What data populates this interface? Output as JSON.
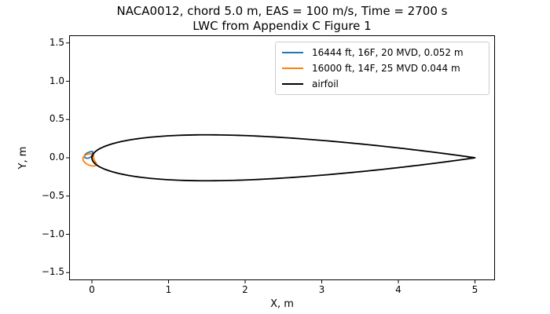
{
  "figure": {
    "title": "NACA0012, chord 5.0 m, EAS = 100 m/s, Time = 2700 s",
    "subtitle": "LWC from Appendix C Figure 1"
  },
  "chart_data": {
    "type": "line",
    "title": "NACA0012, chord 5.0 m, EAS = 100 m/s, Time = 2700 s",
    "subtitle": "LWC from Appendix C Figure 1",
    "aspect": "equal",
    "grid": false,
    "legend_position": "upper right",
    "x_axis": {
      "label": "X, m",
      "lim": [
        -0.3,
        5.26
      ],
      "ticks": [
        {
          "value": 0,
          "text": "0"
        },
        {
          "value": 1,
          "text": "1"
        },
        {
          "value": 2,
          "text": "2"
        },
        {
          "value": 3,
          "text": "3"
        },
        {
          "value": 4,
          "text": "4"
        },
        {
          "value": 5,
          "text": "5"
        }
      ]
    },
    "y_axis": {
      "label": "Y, m",
      "lim": [
        -1.6,
        1.6
      ],
      "ticks": [
        {
          "value": 1.5,
          "text": "1.5"
        },
        {
          "value": 1.0,
          "text": "1.0"
        },
        {
          "value": 0.5,
          "text": "0.5"
        },
        {
          "value": 0.0,
          "text": "0.0"
        },
        {
          "value": -0.5,
          "text": "−0.5"
        },
        {
          "value": -1.0,
          "text": "−1.0"
        },
        {
          "value": -1.5,
          "text": "−1.5"
        }
      ]
    },
    "series": [
      {
        "name": "16444 ft, 16F, 20 MVD, 0.052 m",
        "color": "#1f77b4",
        "kind": "ice_shape_outline",
        "closed": true,
        "points": [
          [
            0.008,
            0.083
          ],
          [
            -0.025,
            0.078
          ],
          [
            -0.06,
            0.065
          ],
          [
            -0.088,
            0.044
          ],
          [
            -0.099,
            0.02
          ],
          [
            -0.093,
            0.003
          ],
          [
            -0.072,
            -0.006
          ],
          [
            -0.045,
            -0.004
          ],
          [
            -0.018,
            0.008
          ],
          [
            0.002,
            0.03
          ],
          [
            0.01,
            0.056
          ]
        ]
      },
      {
        "name": "16000 ft, 14F, 25 MVD 0.044 m",
        "color": "#ff7f0e",
        "kind": "ice_shape_outline",
        "closed": true,
        "points": [
          [
            0.022,
            0.047
          ],
          [
            -0.02,
            0.052
          ],
          [
            -0.065,
            0.045
          ],
          [
            -0.1,
            0.025
          ],
          [
            -0.118,
            -0.004
          ],
          [
            -0.113,
            -0.038
          ],
          [
            -0.088,
            -0.068
          ],
          [
            -0.05,
            -0.091
          ],
          [
            -0.005,
            -0.105
          ],
          [
            0.035,
            -0.108
          ],
          [
            0.058,
            -0.095
          ],
          [
            0.058,
            -0.072
          ],
          [
            0.04,
            -0.048
          ],
          [
            0.026,
            -0.018
          ],
          [
            0.02,
            0.015
          ]
        ]
      },
      {
        "name": "airfoil",
        "color": "#000000",
        "kind": "naca4_airfoil",
        "naca": "0012",
        "chord_m": 5.0,
        "max_half_thickness_m": 0.3
      }
    ]
  }
}
